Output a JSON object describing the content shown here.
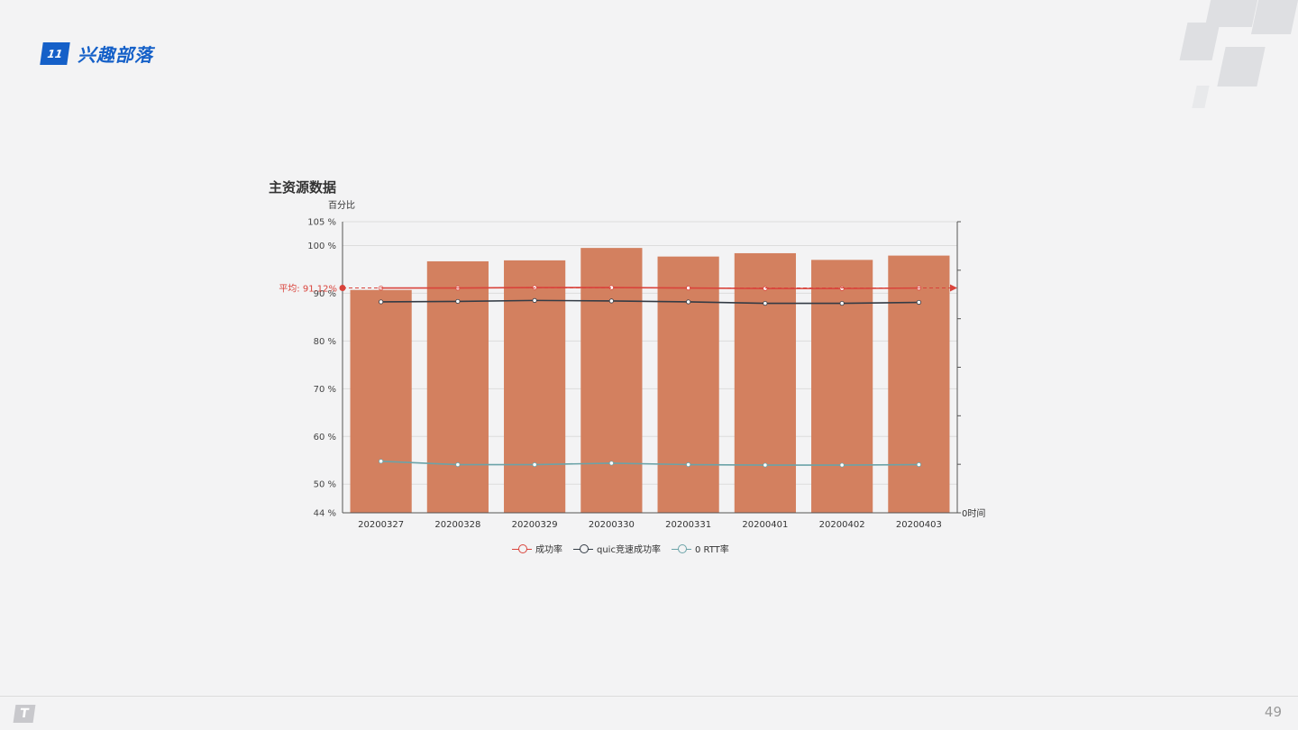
{
  "header": {
    "slide_index": "11",
    "section_title": "兴趣部落"
  },
  "footer": {
    "page_number": "49",
    "logo_glyph": "T"
  },
  "chart_data": {
    "type": "bar",
    "title": "主资源数据",
    "ylabel": "百分比",
    "y2label": "0时间",
    "ylim": [
      44,
      105
    ],
    "yticks": [
      "105 %",
      "100 %",
      "90 %",
      "80 %",
      "70 %",
      "60 %",
      "50 %",
      "44 %"
    ],
    "ytick_values": [
      105,
      100,
      90,
      80,
      70,
      60,
      50,
      44
    ],
    "categories": [
      "20200327",
      "20200328",
      "20200329",
      "20200330",
      "20200331",
      "20200401",
      "20200402",
      "20200403"
    ],
    "bar_values": [
      90.7,
      96.7,
      96.9,
      99.5,
      97.7,
      98.4,
      97.0,
      97.9
    ],
    "bar_color": "#d3805f",
    "series": [
      {
        "name": "成功率",
        "color": "#d9433b",
        "values": [
          91.1,
          91.1,
          91.2,
          91.2,
          91.1,
          91.0,
          91.0,
          91.1
        ]
      },
      {
        "name": "quic竞速成功率",
        "color": "#333b45",
        "values": [
          88.2,
          88.3,
          88.5,
          88.4,
          88.2,
          87.9,
          87.9,
          88.1
        ]
      },
      {
        "name": "0 RTT率",
        "color": "#6ba3a8",
        "values": [
          54.8,
          54.1,
          54.1,
          54.4,
          54.1,
          54.0,
          54.0,
          54.1
        ]
      }
    ],
    "markline": {
      "label": "平均: 91.12%",
      "value": 91.12,
      "color": "#d9433b"
    },
    "grid": true,
    "legend_position": "bottom"
  }
}
